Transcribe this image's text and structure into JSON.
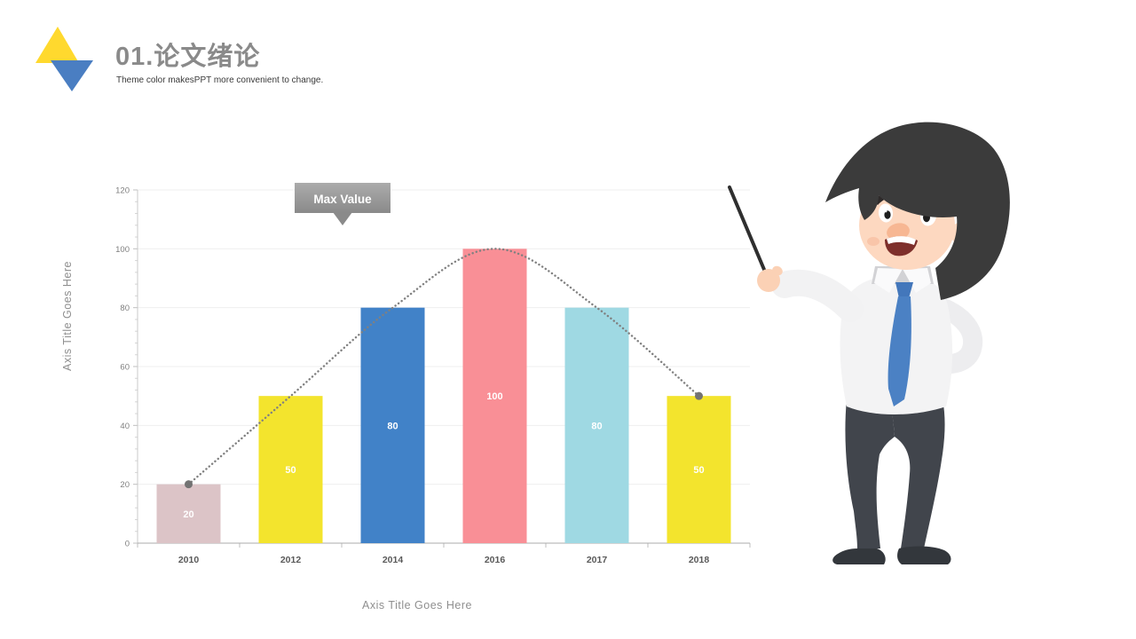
{
  "slide": {
    "title": "01.论文绪论",
    "subtitle": "Theme color makesPPT more convenient to change.",
    "logo": {
      "yellow": "#FFD92E",
      "blue": "#4A7EC2"
    }
  },
  "chart_data": {
    "type": "bar",
    "title": "",
    "categories": [
      "2010",
      "2012",
      "2014",
      "2016",
      "2017",
      "2018"
    ],
    "values": [
      20,
      50,
      80,
      100,
      80,
      50
    ],
    "bar_colors": [
      "#DCC4C7",
      "#F3E42D",
      "#4182C8",
      "#F98F96",
      "#9FD9E3",
      "#F3E42D"
    ],
    "value_label_color": "#FFFFFF",
    "xlabel": "Axis Title Goes Here",
    "ylabel": "Axis Title Goes Here",
    "ylim": [
      0,
      120
    ],
    "ytick_step": 20,
    "ytick_labels": [
      "0",
      "20",
      "40",
      "60",
      "80",
      "100",
      "120"
    ],
    "grid": true,
    "legend": "none",
    "trend": {
      "style": "dotted-spline",
      "color": "#808080",
      "endpoint_marker_color": "#737373",
      "passes_through": [
        20,
        50,
        80,
        100,
        80,
        50
      ]
    },
    "callout": {
      "label": "Max Value",
      "bg_top": "#ACACAC",
      "bg_bottom": "#8A8A8A",
      "text_color": "#FFFFFF"
    }
  },
  "character": {
    "role": "cartoon-presenter-with-pointer-stick",
    "colors": {
      "hair": "#3B3B3B",
      "skin": "#FDD8C0",
      "skin_dark": "#FBD1B5",
      "shirt": "#F3F3F4",
      "sleeve": "#F2F2F3",
      "arm_shade": "#EDEDEF",
      "collar": "#D2D2D5",
      "tie": "#4B81C4",
      "tie_knot": "#4377BB",
      "pants": "#41454C",
      "shoes": "#33373C",
      "pointer": "#2F2F2F"
    }
  }
}
